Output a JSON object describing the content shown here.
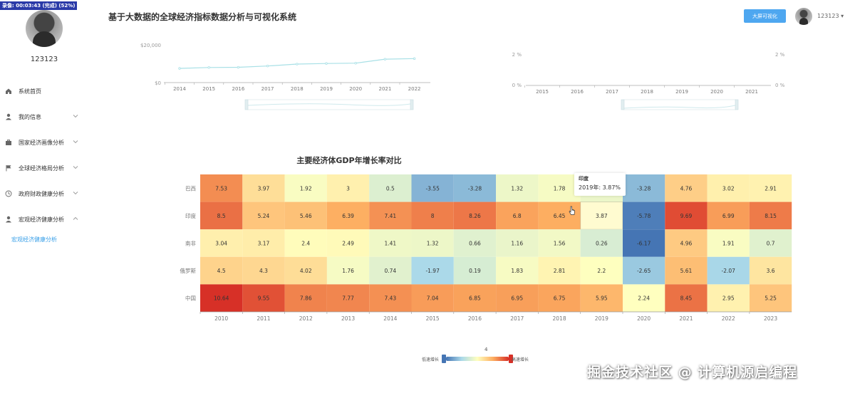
{
  "recording_badge": "录像: 00:03:43 (完成) (52%)",
  "sidebar": {
    "username": "123123",
    "menu": [
      {
        "label": "系统首页",
        "icon": "home-icon",
        "has_chevron": false
      },
      {
        "label": "我的信息",
        "icon": "user-icon",
        "has_chevron": true
      },
      {
        "label": "国家经济画像分析",
        "icon": "briefcase-icon",
        "has_chevron": true
      },
      {
        "label": "全球经济格局分析",
        "icon": "flag-icon",
        "has_chevron": true
      },
      {
        "label": "政府财政健康分析",
        "icon": "clock-icon",
        "has_chevron": true
      },
      {
        "label": "宏观经济健康分析",
        "icon": "user-icon",
        "has_chevron": true,
        "expanded": true
      }
    ],
    "submenu_active": "宏观经济健康分析",
    "accent_color": "#3aa0e8"
  },
  "header": {
    "title": "基于大数据的全球经济指标数据分析与可视化系统",
    "big_screen_button": "大屏可视化",
    "user_label": "123123 ▾"
  },
  "top_left_chart": {
    "type": "line",
    "x": [
      "2014",
      "2015",
      "2016",
      "2017",
      "2018",
      "2019",
      "2020",
      "2021",
      "2022"
    ],
    "values": [
      7500,
      8000,
      8100,
      8800,
      9800,
      10100,
      10300,
      12400,
      12700
    ],
    "y_ticks": [
      "$0",
      "$20,000"
    ],
    "ylim": [
      0,
      20000
    ],
    "color": "#a8e0e6"
  },
  "top_right_chart": {
    "type": "line",
    "x": [
      "2015",
      "2016",
      "2017",
      "2018",
      "2019",
      "2020",
      "2021"
    ],
    "y_ticks_left": [
      "0 %",
      "2 %"
    ],
    "y_ticks_right": [
      "0 %",
      "2 %"
    ],
    "color": "#a8e0e6"
  },
  "chart_data": {
    "type": "heatmap",
    "title": "主要经济体GDP年增长率对比",
    "x": [
      "2010",
      "2011",
      "2012",
      "2013",
      "2014",
      "2015",
      "2016",
      "2017",
      "2018",
      "2019",
      "2020",
      "2021",
      "2022",
      "2023"
    ],
    "y": [
      "巴西",
      "印度",
      "南非",
      "俄罗斯",
      "中国"
    ],
    "values": [
      [
        7.53,
        3.97,
        1.92,
        3,
        0.5,
        -3.55,
        -3.28,
        1.32,
        1.78,
        1.22,
        -3.28,
        4.76,
        3.02,
        2.91
      ],
      [
        8.5,
        5.24,
        5.46,
        6.39,
        7.41,
        8,
        8.26,
        6.8,
        6.45,
        3.87,
        -5.78,
        9.69,
        6.99,
        8.15
      ],
      [
        3.04,
        3.17,
        2.4,
        2.49,
        1.41,
        1.32,
        0.66,
        1.16,
        1.56,
        0.26,
        -6.17,
        4.96,
        1.91,
        0.7
      ],
      [
        4.5,
        4.3,
        4.02,
        1.76,
        0.74,
        -1.97,
        0.19,
        1.83,
        2.81,
        2.2,
        -2.65,
        5.61,
        -2.07,
        3.6
      ],
      [
        10.64,
        9.55,
        7.86,
        7.77,
        7.43,
        7.04,
        6.85,
        6.95,
        6.75,
        5.95,
        2.24,
        8.45,
        2.95,
        5.25
      ]
    ],
    "value_range": [
      -6.17,
      10.64
    ],
    "visual_map": {
      "low_label": "低速增长",
      "high_label": "高速增长",
      "current": "4"
    },
    "tooltip": {
      "name": "印度",
      "text": "2019年: 3.87%"
    },
    "highlight": {
      "row": 1,
      "col": 9
    }
  },
  "watermark": "掘金技术社区 @ 计算机源启编程"
}
